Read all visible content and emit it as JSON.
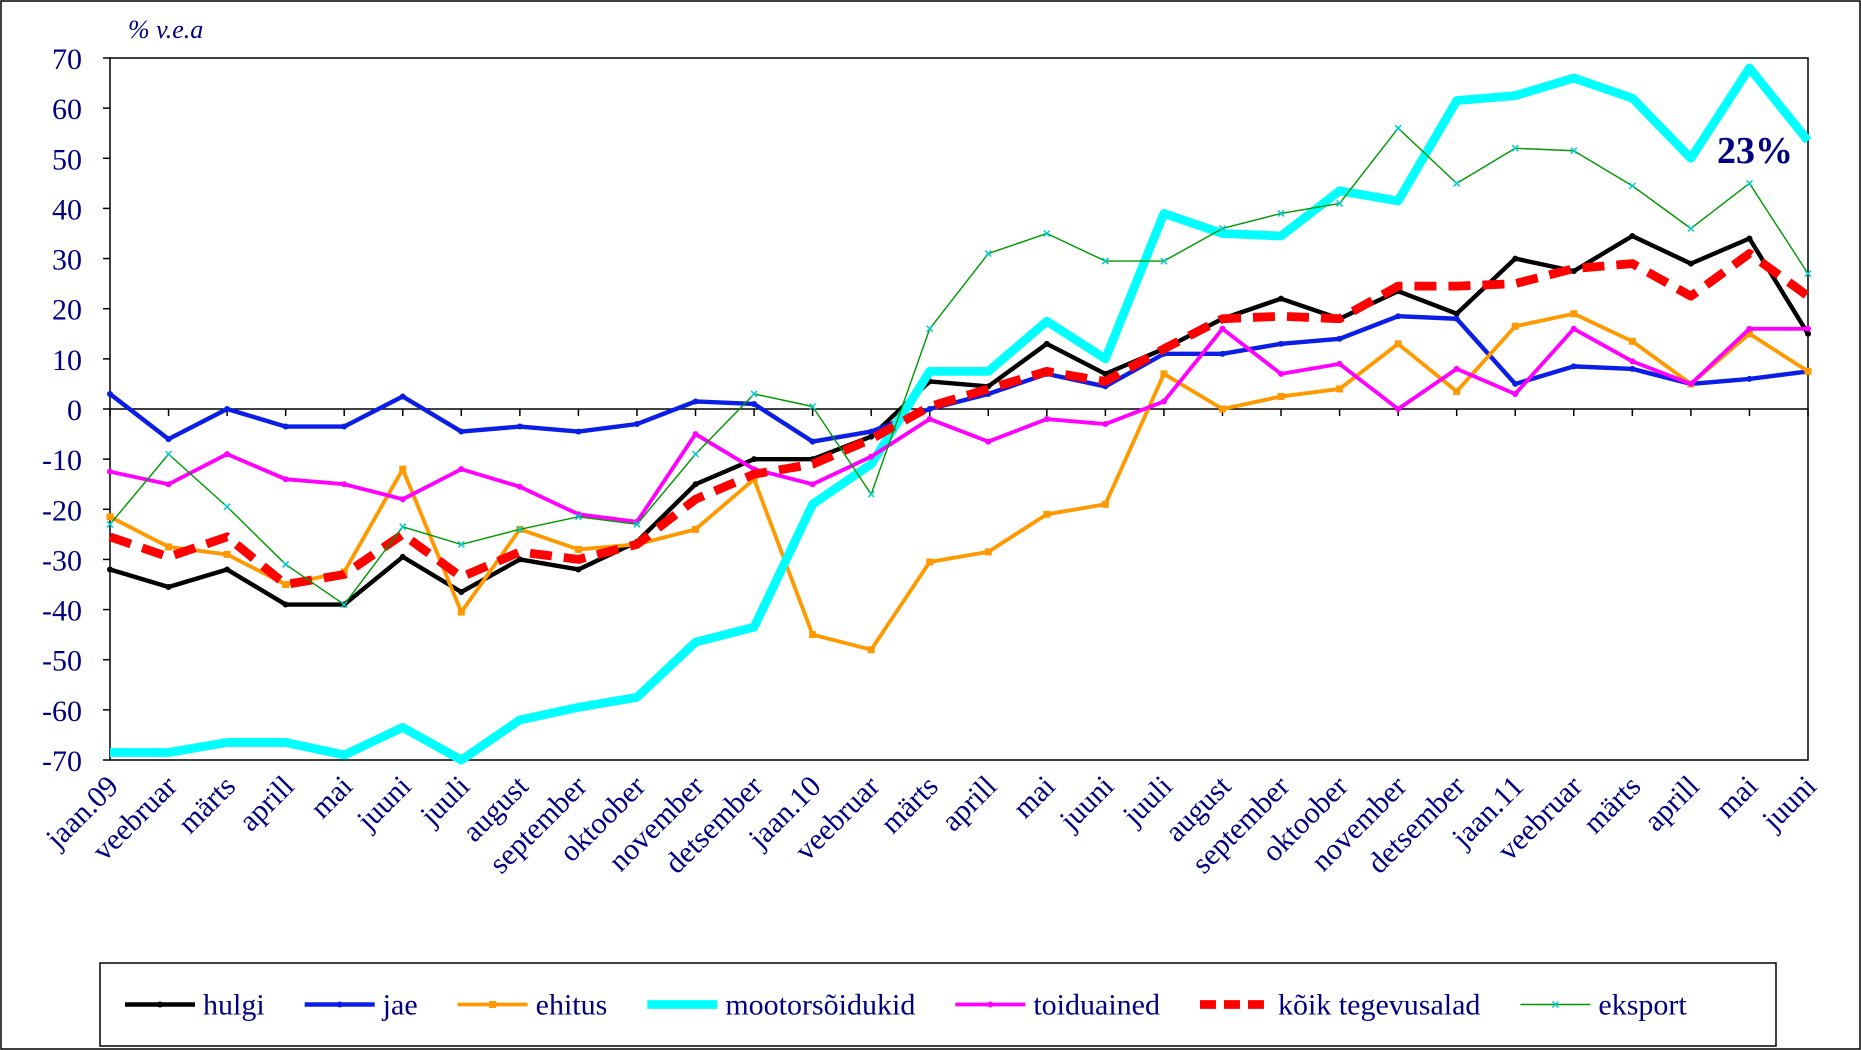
{
  "chart_data": {
    "type": "line",
    "ylabel": "% v.e.a",
    "annotation": "23%",
    "categories": [
      "jaan.09",
      "veebruar",
      "märts",
      "aprill",
      "mai",
      "juuni",
      "juuli",
      "august",
      "september",
      "oktoober",
      "november",
      "detsember",
      "jaan.10",
      "veebruar",
      "märts",
      "aprill",
      "mai",
      "juuni",
      "juuli",
      "august",
      "september",
      "oktoober",
      "november",
      "detsember",
      "jaan.11",
      "veebruar",
      "märts",
      "aprill",
      "mai",
      "juuni"
    ],
    "ylim": [
      -70,
      70
    ],
    "yticks": [
      -70,
      -60,
      -50,
      -40,
      -30,
      -20,
      -10,
      0,
      10,
      20,
      30,
      40,
      50,
      60,
      70
    ],
    "grid": false,
    "series": [
      {
        "name": "hulgi",
        "color": "#000000",
        "line_width": 4,
        "dashed": false,
        "marker": "dot",
        "values": [
          -32,
          -35.5,
          -32,
          -39,
          -39,
          -29.5,
          -36.5,
          -30,
          -32,
          -26.5,
          -15,
          -10,
          -10,
          -5.5,
          5.5,
          4.5,
          13,
          7,
          12,
          18,
          22,
          18,
          23.5,
          19,
          30,
          27.5,
          34.5,
          29,
          34,
          15
        ]
      },
      {
        "name": "jae",
        "color": "#0a1ee6",
        "line_width": 4,
        "dashed": false,
        "marker": "dot",
        "values": [
          3,
          -6,
          0,
          -3.5,
          -3.5,
          2.5,
          -4.5,
          -3.5,
          -4.5,
          -3,
          1.5,
          1,
          -6.5,
          -4.5,
          0,
          3,
          7,
          4.5,
          11,
          11,
          13,
          14,
          18.5,
          18,
          5,
          8.5,
          8,
          5,
          6,
          7.5
        ]
      },
      {
        "name": "ehitus",
        "color": "#ff9900",
        "line_width": 3.5,
        "dashed": false,
        "marker": "square",
        "values": [
          -21.5,
          -27.5,
          -29,
          -35,
          -32.5,
          -12,
          -40.5,
          -24,
          -28,
          -27,
          -24,
          -14,
          -45,
          -48,
          -30.5,
          -28.5,
          -21,
          -19,
          7,
          0,
          2.5,
          4,
          13,
          3.5,
          16.5,
          19,
          13.5,
          5,
          15,
          7.5
        ]
      },
      {
        "name": "mootorsõidukid",
        "color": "#00ffff",
        "line_width": 8,
        "dashed": false,
        "marker": "none",
        "values": [
          -68.5,
          -68.5,
          -66.5,
          -66.5,
          -69,
          -63.5,
          -70,
          -62,
          -59.5,
          -57.5,
          -46.5,
          -43.5,
          -19,
          -11,
          7.5,
          7.5,
          17.5,
          10,
          39,
          35,
          34.5,
          43.5,
          41.5,
          61.5,
          62.5,
          66,
          62,
          50,
          68,
          53.5
        ]
      },
      {
        "name": "toiduained",
        "color": "#ff00ff",
        "line_width": 3.5,
        "dashed": false,
        "marker": "dot",
        "values": [
          -12.5,
          -15,
          -9,
          -14,
          -15,
          -18,
          -12,
          -15.5,
          -21,
          -22.5,
          -5,
          -12,
          -15,
          -9.5,
          -2,
          -6.5,
          -2,
          -3,
          1.5,
          16,
          7,
          9,
          0,
          8,
          3,
          16,
          9.5,
          5,
          16,
          16
        ]
      },
      {
        "name": "kõik tegevusalad",
        "color": "#ff0000",
        "line_width": 8,
        "dashed": true,
        "marker": "none",
        "values": [
          -25.5,
          -29.5,
          -25.5,
          -35,
          -33,
          -25,
          -33.5,
          -28.5,
          -30,
          -27,
          -18,
          -13,
          -11,
          -6,
          0.5,
          4,
          7.5,
          5.5,
          12,
          18,
          18.5,
          18,
          24.5,
          24.5,
          25,
          28,
          29,
          22.5,
          31,
          22.5
        ]
      },
      {
        "name": "eksport",
        "color": "#009900",
        "line_width": 1.3,
        "dashed": false,
        "marker": "x",
        "values": [
          -23,
          -9,
          -19.5,
          -31,
          -39,
          -23.5,
          -27,
          -24,
          -21.5,
          -23,
          -9,
          3,
          0.5,
          -17,
          16,
          31,
          35,
          29.5,
          29.5,
          36,
          39,
          41,
          56,
          45,
          52,
          51.5,
          44.5,
          36,
          45,
          27
        ]
      }
    ]
  }
}
